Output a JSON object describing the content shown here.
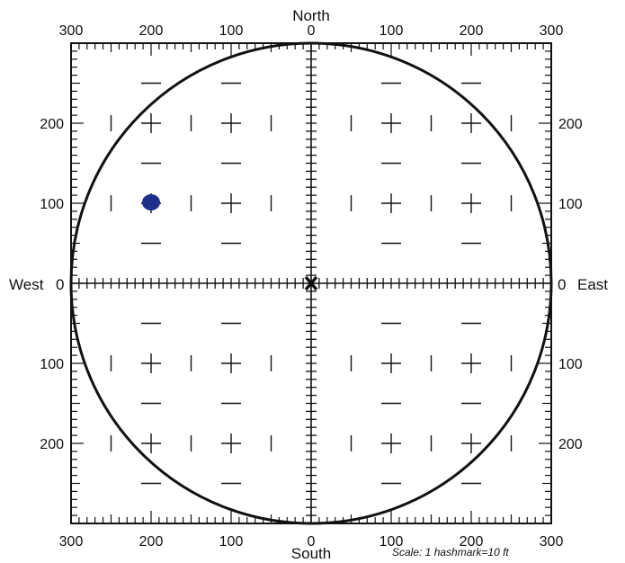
{
  "labels": {
    "north": "North",
    "south": "South",
    "west": "West",
    "east": "East",
    "west_zero": "0",
    "east_zero": "0",
    "scale": "Scale:  1 hashmark=10 ft"
  },
  "axes": {
    "top_ticks": [
      "300",
      "200",
      "100",
      "0",
      "100",
      "200",
      "300"
    ],
    "bottom_ticks": [
      "300",
      "200",
      "100",
      "0",
      "100",
      "200",
      "300"
    ],
    "left_ticks": [
      "200",
      "100",
      "100",
      "200"
    ],
    "right_ticks": [
      "200",
      "100",
      "100",
      "200"
    ],
    "range_ft": 300,
    "hashmark_ft": 10
  },
  "markers": {
    "center": {
      "symbol": "X",
      "east_ft": 0,
      "north_ft": 0
    },
    "target_dot": {
      "east_ft": -200,
      "north_ft": 100,
      "color": "#1f2f8c"
    }
  },
  "colors": {
    "ink": "#111111",
    "dot": "#1f2f8c",
    "background": "#ffffff"
  }
}
